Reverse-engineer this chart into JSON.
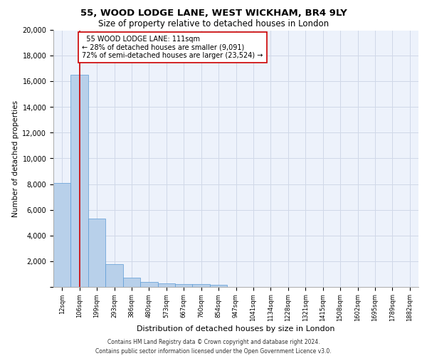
{
  "title_line1": "55, WOOD LODGE LANE, WEST WICKHAM, BR4 9LY",
  "title_line2": "Size of property relative to detached houses in London",
  "xlabel": "Distribution of detached houses by size in London",
  "ylabel": "Number of detached properties",
  "categories": [
    "12sqm",
    "106sqm",
    "199sqm",
    "293sqm",
    "386sqm",
    "480sqm",
    "573sqm",
    "667sqm",
    "760sqm",
    "854sqm",
    "947sqm",
    "1041sqm",
    "1134sqm",
    "1228sqm",
    "1321sqm",
    "1415sqm",
    "1508sqm",
    "1602sqm",
    "1695sqm",
    "1789sqm",
    "1882sqm"
  ],
  "values": [
    8100,
    16500,
    5300,
    1750,
    700,
    350,
    270,
    200,
    170,
    140,
    0,
    0,
    0,
    0,
    0,
    0,
    0,
    0,
    0,
    0,
    0
  ],
  "bar_color": "#b8d0ea",
  "bar_edge_color": "#5b9bd5",
  "vline_x": 1.0,
  "vline_color": "#cc0000",
  "annotation_text": "  55 WOOD LODGE LANE: 111sqm\n← 28% of detached houses are smaller (9,091)\n72% of semi-detached houses are larger (23,524) →",
  "annotation_box_color": "#ffffff",
  "annotation_box_edge": "#cc0000",
  "ylim": [
    0,
    20000
  ],
  "yticks": [
    0,
    2000,
    4000,
    6000,
    8000,
    10000,
    12000,
    14000,
    16000,
    18000,
    20000
  ],
  "grid_color": "#d0d8e8",
  "bg_color": "#edf2fb",
  "footer_line1": "Contains HM Land Registry data © Crown copyright and database right 2024.",
  "footer_line2": "Contains public sector information licensed under the Open Government Licence v3.0."
}
